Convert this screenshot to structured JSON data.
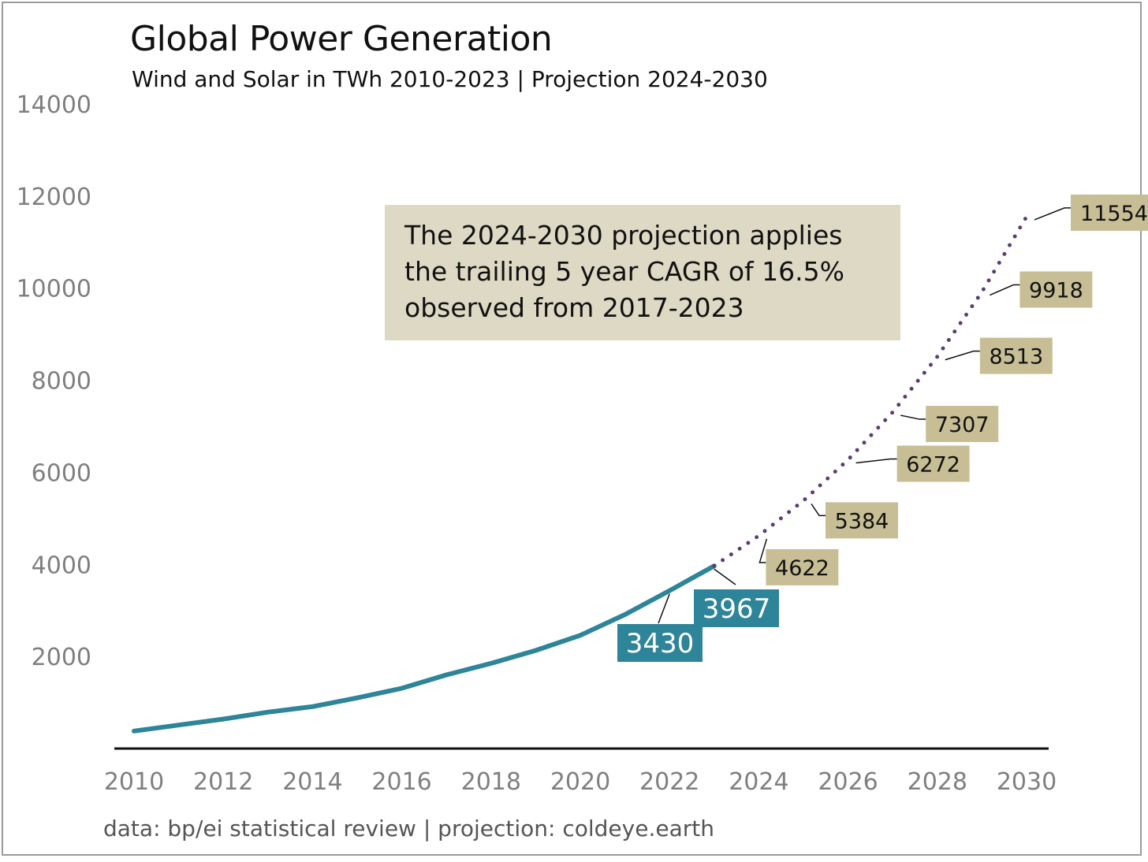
{
  "chart_data": {
    "type": "line",
    "title": "Global Power Generation",
    "subtitle": "Wind and Solar in TWh 2010-2023 | Projection 2024-2030",
    "source": "data: bp/ei statistical review | projection: coldeye.earth",
    "xlabel": "",
    "ylabel": "",
    "xlim": [
      2010,
      2030
    ],
    "ylim": [
      0,
      14000
    ],
    "x_ticks": [
      "2010",
      "2012",
      "2014",
      "2016",
      "2018",
      "2020",
      "2022",
      "2024",
      "2026",
      "2028",
      "2030"
    ],
    "y_ticks": [
      "2000",
      "4000",
      "6000",
      "8000",
      "10000",
      "12000",
      "14000"
    ],
    "grid": false,
    "legend": "none",
    "annotation": {
      "lines": [
        "The 2024-2030 projection applies",
        "the trailing 5 year CAGR of 16.5%",
        "observed from 2017-2023"
      ]
    },
    "series": [
      {
        "style": "solid",
        "color": "#2e8599",
        "x": [
          2010,
          2011,
          2012,
          2013,
          2014,
          2015,
          2016,
          2017,
          2018,
          2019,
          2020,
          2021,
          2022,
          2023
        ],
        "values": [
          380,
          510,
          640,
          790,
          910,
          1100,
          1310,
          1600,
          1850,
          2130,
          2460,
          2910,
          3430,
          3967
        ],
        "labels": [
          {
            "x": 2022,
            "text": "3430"
          },
          {
            "x": 2023,
            "text": "3967"
          }
        ]
      },
      {
        "style": "dotted",
        "color": "#5c3d73",
        "x": [
          2023,
          2024,
          2025,
          2026,
          2027,
          2028,
          2029,
          2030
        ],
        "values": [
          3967,
          4622,
          5384,
          6272,
          7307,
          8513,
          9918,
          11554
        ],
        "labels": [
          {
            "x": 2024,
            "text": "4622"
          },
          {
            "x": 2025,
            "text": "5384"
          },
          {
            "x": 2026,
            "text": "6272"
          },
          {
            "x": 2027,
            "text": "7307"
          },
          {
            "x": 2028,
            "text": "8513"
          },
          {
            "x": 2029,
            "text": "9918"
          },
          {
            "x": 2030,
            "text": "11554"
          }
        ]
      }
    ],
    "colors": {
      "projection_label_bg": "#c8be96",
      "annotation_bg": "#ddd9c4",
      "history_label_bg": "#2e8599"
    }
  }
}
